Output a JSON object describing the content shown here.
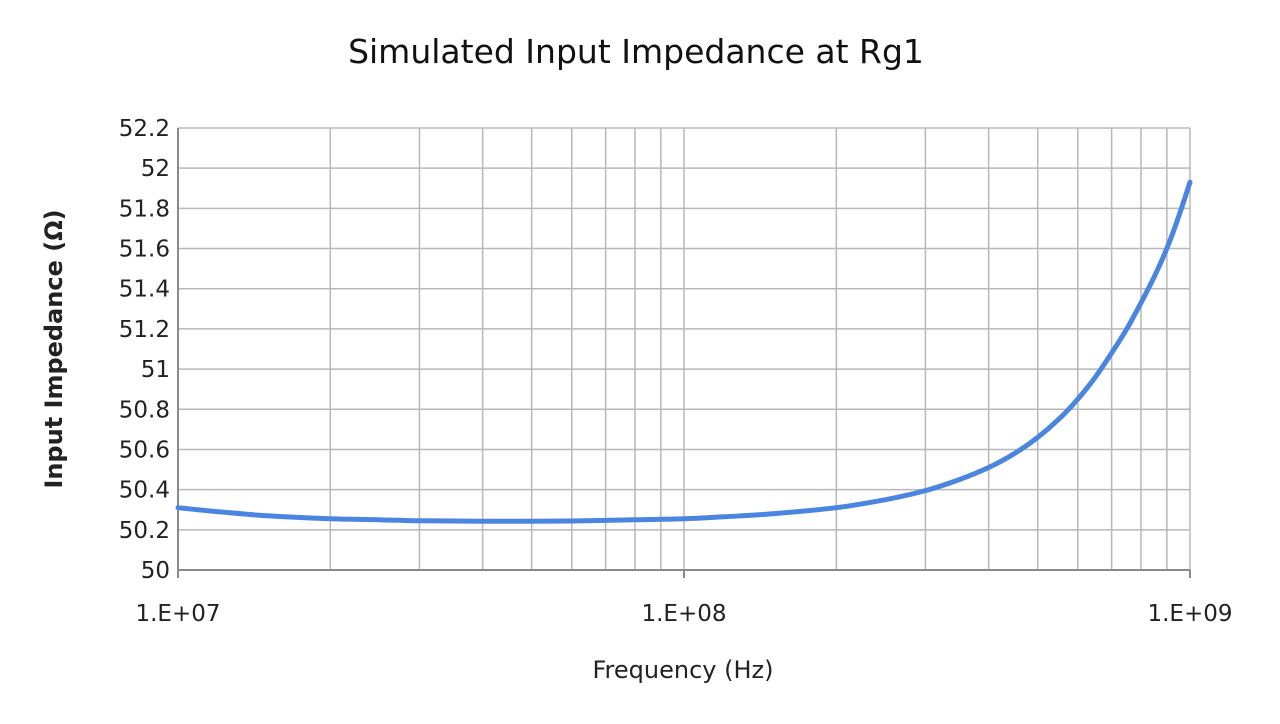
{
  "chart_data": {
    "type": "line",
    "title": "Simulated Input Impedance at Rg1",
    "xlabel": "Frequency (Hz)",
    "ylabel": "Input Impedance (Ω)",
    "x_scale": "log",
    "xlim": [
      10000000,
      1000000000
    ],
    "ylim": [
      50,
      52.2
    ],
    "x_ticks": [
      {
        "value": 10000000,
        "label": "1.E+07"
      },
      {
        "value": 100000000,
        "label": "1.E+08"
      },
      {
        "value": 1000000000,
        "label": "1.E+09"
      }
    ],
    "y_ticks": [
      {
        "value": 50,
        "label": "50"
      },
      {
        "value": 50.2,
        "label": "50.2"
      },
      {
        "value": 50.4,
        "label": "50.4"
      },
      {
        "value": 50.6,
        "label": "50.6"
      },
      {
        "value": 50.8,
        "label": "50.8"
      },
      {
        "value": 51,
        "label": "51"
      },
      {
        "value": 51.2,
        "label": "51.2"
      },
      {
        "value": 51.4,
        "label": "51.4"
      },
      {
        "value": 51.6,
        "label": "51.6"
      },
      {
        "value": 51.8,
        "label": "51.8"
      },
      {
        "value": 52,
        "label": "52"
      },
      {
        "value": 52.2,
        "label": "52.2"
      }
    ],
    "grid": true,
    "series": [
      {
        "color": "#4a86e0",
        "x": [
          10000000,
          12000000,
          15000000,
          20000000,
          25000000,
          30000000,
          40000000,
          50000000,
          60000000,
          70000000,
          80000000,
          100000000,
          120000000,
          150000000,
          200000000,
          250000000,
          300000000,
          350000000,
          400000000,
          450000000,
          500000000,
          550000000,
          600000000,
          650000000,
          700000000,
          750000000,
          800000000,
          850000000,
          900000000,
          950000000,
          1000000000
        ],
        "y": [
          50.31,
          50.29,
          50.27,
          50.255,
          50.25,
          50.245,
          50.243,
          50.243,
          50.244,
          50.247,
          50.25,
          50.255,
          50.265,
          50.28,
          50.31,
          50.35,
          50.395,
          50.45,
          50.51,
          50.58,
          50.66,
          50.75,
          50.85,
          50.96,
          51.08,
          51.2,
          51.33,
          51.46,
          51.6,
          51.76,
          51.93
        ]
      }
    ]
  }
}
